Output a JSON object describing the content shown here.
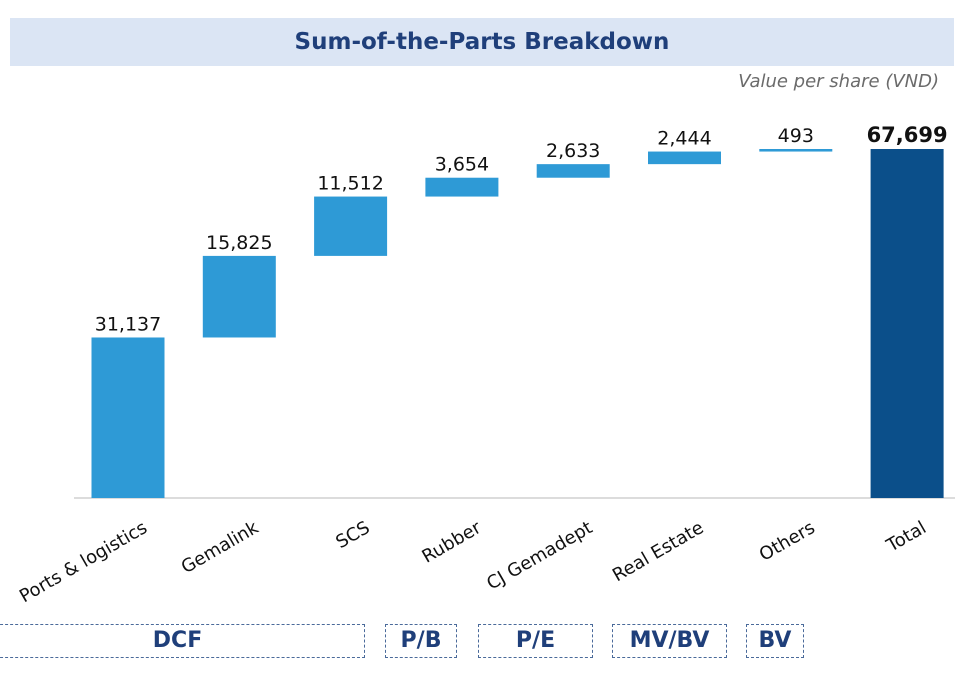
{
  "header": {
    "title": "Sum-of-the-Parts Breakdown",
    "subtitle": "Value per share (VND)"
  },
  "colors": {
    "bar": "#2e9ad6",
    "total_bar": "#0b4f8a",
    "title_bg": "#dbe5f4",
    "title_text": "#1f3f7a",
    "axis": "#d0d0d0"
  },
  "chart_data": {
    "type": "bar",
    "subtype": "waterfall",
    "title": "Sum-of-the-Parts Breakdown",
    "ylabel": "Value per share (VND)",
    "xlabel": "",
    "categories": [
      "Ports & logistics",
      "Gemalink",
      "SCS",
      "Rubber",
      "CJ Gemadept",
      "Real Estate",
      "Others",
      "Total"
    ],
    "values": [
      31137,
      15825,
      11512,
      3654,
      2633,
      2444,
      493,
      67699
    ],
    "labels": [
      "31,137",
      "15,825",
      "11,512",
      "3,654",
      "2,633",
      "2,444",
      "493",
      "67,699"
    ],
    "total_index": 7,
    "ylim": [
      0,
      70000
    ],
    "grid": false
  },
  "methods": [
    {
      "label": "DCF"
    },
    {
      "label": "P/B"
    },
    {
      "label": "P/E"
    },
    {
      "label": "MV/BV"
    },
    {
      "label": "BV"
    }
  ]
}
